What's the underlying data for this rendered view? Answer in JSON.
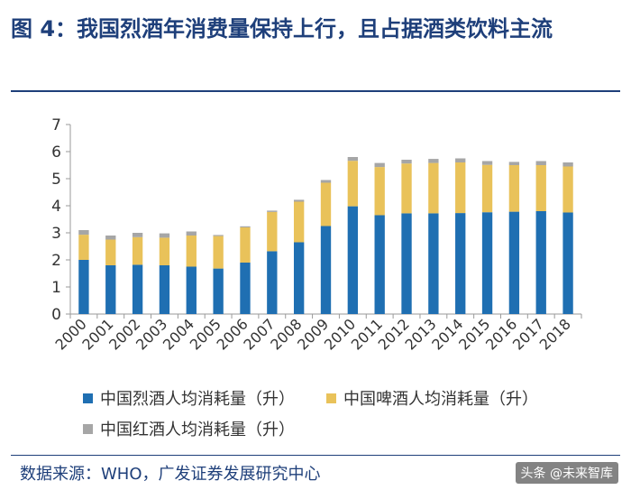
{
  "title": "图 4：我国烈酒年消费量保持上行，且占据酒类饮料主流",
  "source": "数据来源：WHO，广发证券发展研究中心",
  "watermark": "头条 @未来智库",
  "chart_data": {
    "type": "bar",
    "stacked": true,
    "categories": [
      "2000",
      "2001",
      "2002",
      "2003",
      "2004",
      "2005",
      "2006",
      "2007",
      "2008",
      "2009",
      "2010",
      "2011",
      "2012",
      "2013",
      "2014",
      "2015",
      "2016",
      "2017",
      "2018"
    ],
    "ylim": [
      0,
      7
    ],
    "yticks": [
      0,
      1,
      2,
      3,
      4,
      5,
      6,
      7
    ],
    "grid": false,
    "legend_position": "bottom",
    "series": [
      {
        "name": "中国烈酒人均消耗量（升）",
        "color": "#1f6fb2",
        "values": [
          2.0,
          1.8,
          1.82,
          1.8,
          1.75,
          1.68,
          1.9,
          2.32,
          2.65,
          3.25,
          3.98,
          3.65,
          3.72,
          3.72,
          3.73,
          3.76,
          3.78,
          3.8,
          3.75
        ]
      },
      {
        "name": "中国啤酒人均消耗量（升）",
        "color": "#e9c25a",
        "values": [
          0.93,
          0.95,
          1.02,
          1.02,
          1.15,
          1.2,
          1.3,
          1.45,
          1.5,
          1.6,
          1.68,
          1.78,
          1.84,
          1.86,
          1.87,
          1.75,
          1.72,
          1.7,
          1.7
        ]
      },
      {
        "name": "中国红酒人均消耗量（升）",
        "color": "#a6a6a6",
        "values": [
          0.17,
          0.15,
          0.16,
          0.16,
          0.15,
          0.04,
          0.04,
          0.05,
          0.07,
          0.1,
          0.14,
          0.15,
          0.14,
          0.15,
          0.15,
          0.14,
          0.12,
          0.15,
          0.15
        ]
      }
    ]
  }
}
